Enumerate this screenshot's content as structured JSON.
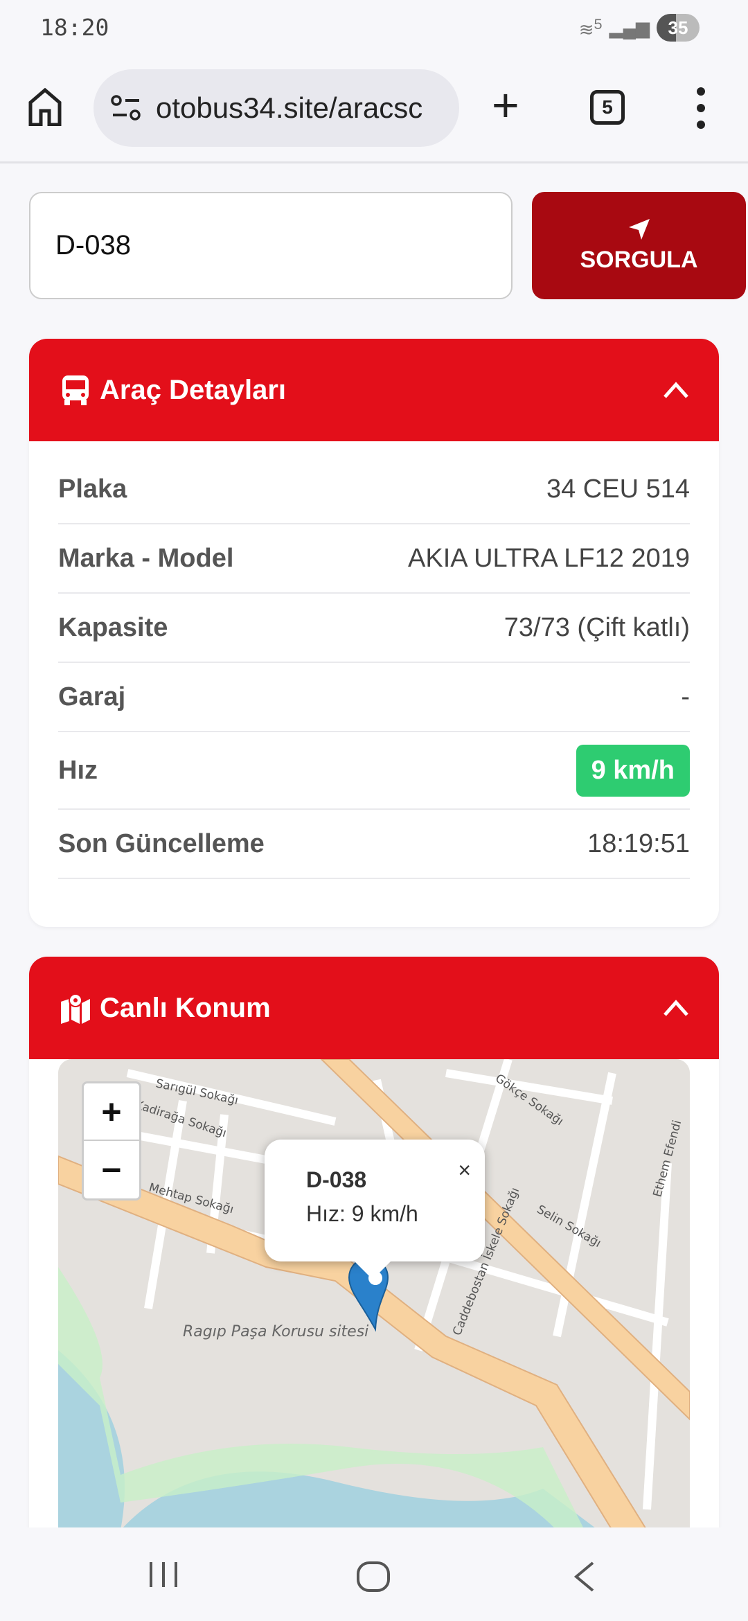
{
  "status_bar": {
    "time": "18:20",
    "battery": "35",
    "network": "5"
  },
  "browser": {
    "url": "otobus34.site/aracsc",
    "tab_count": "5"
  },
  "search": {
    "value": "D-038",
    "button_label": "SORGULA"
  },
  "vehicle_card": {
    "title": "Araç Detayları",
    "rows": [
      {
        "label": "Plaka",
        "value": "34 CEU 514"
      },
      {
        "label": "Marka - Model",
        "value": "AKIA ULTRA LF12 2019"
      },
      {
        "label": "Kapasite",
        "value": "73/73 (Çift katlı)"
      },
      {
        "label": "Garaj",
        "value": "-"
      },
      {
        "label": "Hız",
        "value": "9 km/h"
      },
      {
        "label": "Son Güncelleme",
        "value": "18:19:51"
      }
    ]
  },
  "location_card": {
    "title": "Canlı Konum",
    "zoom_in": "+",
    "zoom_out": "−",
    "popup": {
      "title": "D-038",
      "speed": "Hız: 9 km/h",
      "close": "×"
    },
    "map_labels": [
      "Sarıgül Sokağı",
      "Kadirağa Sokağı",
      "Gökçe Sokağı",
      "Mehtap Sokağı",
      "Caddebostan İskele Sokağı",
      "Selin Sokağı",
      "Ethem Efendi",
      "Ragıp Paşa Korusu sitesi"
    ]
  },
  "colors": {
    "header_red": "#e30f1a",
    "button_red": "#a80911",
    "speed_green": "#2ecc71",
    "marker_blue": "#2a81cb"
  }
}
